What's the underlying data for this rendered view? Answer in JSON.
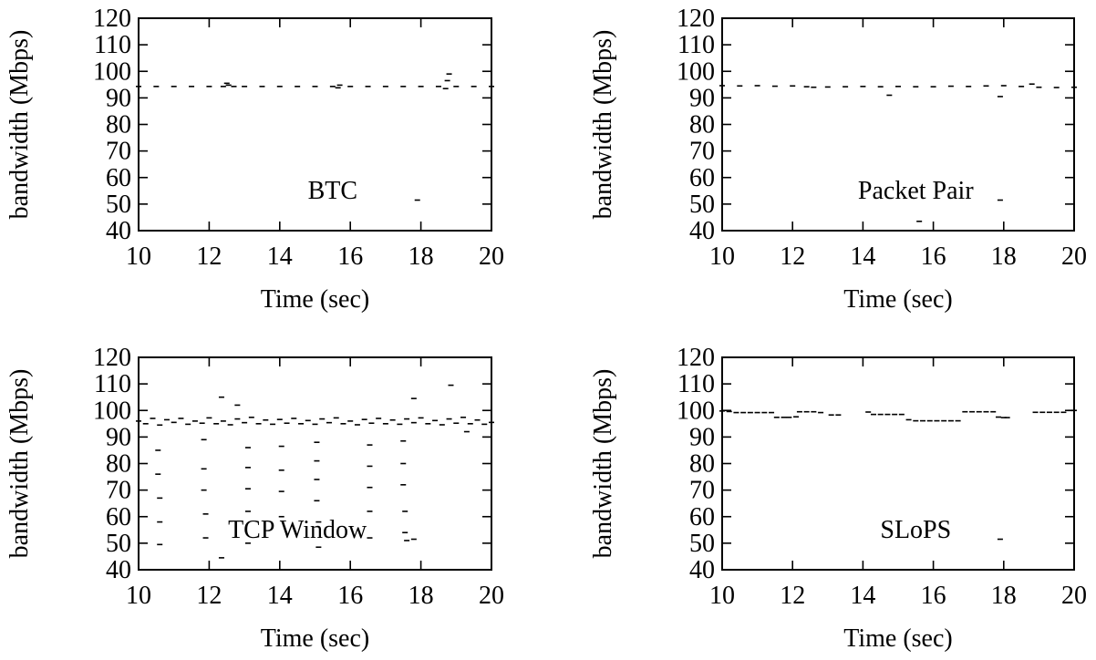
{
  "chart_data": [
    {
      "type": "scatter",
      "annotation": "BTC",
      "xlabel": "Time (sec)",
      "ylabel": "bandwidth (Mbps)",
      "xlim": [
        10,
        20
      ],
      "ylim": [
        40,
        120
      ],
      "xticks": [
        10,
        12,
        14,
        16,
        18,
        20
      ],
      "yticks": [
        40,
        50,
        60,
        70,
        80,
        90,
        100,
        110,
        120
      ],
      "grid": false,
      "series": [
        {
          "values": [
            [
              10.0,
              94.3
            ],
            [
              10.5,
              94.3
            ],
            [
              11.0,
              94.3
            ],
            [
              11.5,
              94.3
            ],
            [
              12.0,
              94.3
            ],
            [
              12.4,
              94.3
            ],
            [
              12.5,
              95.5
            ],
            [
              12.55,
              94.8
            ],
            [
              12.7,
              94.3
            ],
            [
              13.0,
              94.3
            ],
            [
              13.5,
              94.3
            ],
            [
              14.0,
              94.3
            ],
            [
              14.5,
              94.3
            ],
            [
              15.0,
              94.3
            ],
            [
              15.5,
              94.3
            ],
            [
              15.65,
              93.8
            ],
            [
              15.7,
              94.8
            ],
            [
              16.0,
              94.3
            ],
            [
              16.5,
              94.3
            ],
            [
              17.0,
              94.3
            ],
            [
              17.5,
              94.3
            ],
            [
              17.9,
              51.5
            ],
            [
              18.0,
              94.3
            ],
            [
              18.5,
              94.3
            ],
            [
              18.7,
              93.5
            ],
            [
              18.75,
              96.5
            ],
            [
              18.8,
              99.0
            ],
            [
              19.0,
              94.3
            ],
            [
              19.5,
              94.3
            ],
            [
              20.0,
              94.3
            ]
          ]
        }
      ]
    },
    {
      "type": "scatter",
      "annotation": "Packet Pair",
      "xlabel": "Time (sec)",
      "ylabel": "bandwidth (Mbps)",
      "xlim": [
        10,
        20
      ],
      "ylim": [
        40,
        120
      ],
      "xticks": [
        10,
        12,
        14,
        16,
        18,
        20
      ],
      "yticks": [
        40,
        50,
        60,
        70,
        80,
        90,
        100,
        110,
        120
      ],
      "grid": false,
      "series": [
        {
          "values": [
            [
              10.0,
              94.6
            ],
            [
              10.5,
              94.5
            ],
            [
              11.0,
              94.6
            ],
            [
              11.5,
              94.4
            ],
            [
              12.0,
              94.5
            ],
            [
              12.4,
              94.2
            ],
            [
              12.6,
              94.0
            ],
            [
              13.0,
              94.1
            ],
            [
              13.5,
              94.2
            ],
            [
              14.0,
              94.3
            ],
            [
              14.5,
              94.2
            ],
            [
              14.75,
              91.0
            ],
            [
              15.0,
              94.3
            ],
            [
              15.5,
              94.2
            ],
            [
              15.6,
              43.5
            ],
            [
              16.0,
              94.2
            ],
            [
              16.5,
              94.4
            ],
            [
              17.0,
              94.3
            ],
            [
              17.5,
              94.5
            ],
            [
              17.9,
              90.5
            ],
            [
              17.9,
              51.5
            ],
            [
              18.0,
              94.6
            ],
            [
              18.5,
              94.3
            ],
            [
              18.8,
              95.2
            ],
            [
              19.0,
              94.0
            ],
            [
              19.5,
              93.9
            ],
            [
              20.0,
              94.0
            ]
          ]
        }
      ]
    },
    {
      "type": "scatter",
      "annotation": "TCP Window",
      "xlabel": "Time (sec)",
      "ylabel": "bandwidth (Mbps)",
      "xlim": [
        10,
        20
      ],
      "ylim": [
        40,
        120
      ],
      "xticks": [
        10,
        12,
        14,
        16,
        18,
        20
      ],
      "yticks": [
        40,
        50,
        60,
        70,
        80,
        90,
        100,
        110,
        120
      ],
      "grid": false,
      "series": [
        {
          "values": [
            [
              10.0,
              96.0
            ],
            [
              10.2,
              95.0
            ],
            [
              10.4,
              97.0
            ],
            [
              10.6,
              94.5
            ],
            [
              10.8,
              96.5
            ],
            [
              11.0,
              95.5
            ],
            [
              11.2,
              97.0
            ],
            [
              11.4,
              94.8
            ],
            [
              11.6,
              96.0
            ],
            [
              11.8,
              95.2
            ],
            [
              12.0,
              97.2
            ],
            [
              12.2,
              95.0
            ],
            [
              12.4,
              96.0
            ],
            [
              12.6,
              94.6
            ],
            [
              12.8,
              96.8
            ],
            [
              13.0,
              95.4
            ],
            [
              13.2,
              97.4
            ],
            [
              13.4,
              95.0
            ],
            [
              13.6,
              96.4
            ],
            [
              13.8,
              94.8
            ],
            [
              14.0,
              96.6
            ],
            [
              14.2,
              95.2
            ],
            [
              14.4,
              97.0
            ],
            [
              14.6,
              95.0
            ],
            [
              14.8,
              96.2
            ],
            [
              15.0,
              94.8
            ],
            [
              15.2,
              96.8
            ],
            [
              15.4,
              95.4
            ],
            [
              15.6,
              97.2
            ],
            [
              15.8,
              95.0
            ],
            [
              16.0,
              96.0
            ],
            [
              16.2,
              94.6
            ],
            [
              16.4,
              96.6
            ],
            [
              16.6,
              95.2
            ],
            [
              16.8,
              97.0
            ],
            [
              17.0,
              95.0
            ],
            [
              17.2,
              96.4
            ],
            [
              17.4,
              94.8
            ],
            [
              17.6,
              96.8
            ],
            [
              17.8,
              95.4
            ],
            [
              18.0,
              97.2
            ],
            [
              18.2,
              95.0
            ],
            [
              18.4,
              96.2
            ],
            [
              18.6,
              94.6
            ],
            [
              18.8,
              96.8
            ],
            [
              19.0,
              95.2
            ],
            [
              19.2,
              97.4
            ],
            [
              19.4,
              95.0
            ],
            [
              19.6,
              96.4
            ],
            [
              19.8,
              94.8
            ],
            [
              20.0,
              95.5
            ],
            [
              10.55,
              85.0
            ],
            [
              10.55,
              76.0
            ],
            [
              10.6,
              67.0
            ],
            [
              10.6,
              58.0
            ],
            [
              10.6,
              49.5
            ],
            [
              11.85,
              89.0
            ],
            [
              11.85,
              78.0
            ],
            [
              11.85,
              70.0
            ],
            [
              11.9,
              61.0
            ],
            [
              11.9,
              52.0
            ],
            [
              12.35,
              105.0
            ],
            [
              12.35,
              44.5
            ],
            [
              12.8,
              102.0
            ],
            [
              13.1,
              86.0
            ],
            [
              13.1,
              78.5
            ],
            [
              13.1,
              70.5
            ],
            [
              13.1,
              62.0
            ],
            [
              13.1,
              50.0
            ],
            [
              14.05,
              86.5
            ],
            [
              14.05,
              77.5
            ],
            [
              14.05,
              69.5
            ],
            [
              14.05,
              60.0
            ],
            [
              15.05,
              88.0
            ],
            [
              15.05,
              81.0
            ],
            [
              15.05,
              74.0
            ],
            [
              15.05,
              66.0
            ],
            [
              15.1,
              58.0
            ],
            [
              15.1,
              48.5
            ],
            [
              16.55,
              87.0
            ],
            [
              16.55,
              79.0
            ],
            [
              16.55,
              71.0
            ],
            [
              16.55,
              62.0
            ],
            [
              16.55,
              52.0
            ],
            [
              17.5,
              88.5
            ],
            [
              17.5,
              80.0
            ],
            [
              17.5,
              72.0
            ],
            [
              17.55,
              62.0
            ],
            [
              17.55,
              54.0
            ],
            [
              17.6,
              51.0
            ],
            [
              17.8,
              104.5
            ],
            [
              17.8,
              51.5
            ],
            [
              18.85,
              109.5
            ],
            [
              19.3,
              92.0
            ]
          ]
        }
      ]
    },
    {
      "type": "scatter",
      "annotation": "SLoPS",
      "xlabel": "Time (sec)",
      "ylabel": "bandwidth (Mbps)",
      "xlim": [
        10,
        20
      ],
      "ylim": [
        40,
        120
      ],
      "xticks": [
        10,
        12,
        14,
        16,
        18,
        20
      ],
      "yticks": [
        40,
        50,
        60,
        70,
        80,
        90,
        100,
        110,
        120
      ],
      "grid": false,
      "series": [
        {
          "values": [
            [
              10.0,
              99.8
            ],
            [
              10.2,
              99.6
            ],
            [
              10.4,
              99.2
            ],
            [
              10.6,
              99.2
            ],
            [
              10.8,
              99.2
            ],
            [
              11.0,
              99.2
            ],
            [
              11.2,
              99.2
            ],
            [
              11.4,
              99.2
            ],
            [
              11.55,
              97.4
            ],
            [
              11.75,
              97.4
            ],
            [
              11.9,
              97.4
            ],
            [
              12.1,
              97.6
            ],
            [
              12.2,
              99.5
            ],
            [
              12.4,
              99.5
            ],
            [
              12.6,
              99.5
            ],
            [
              12.8,
              99.2
            ],
            [
              13.1,
              98.3
            ],
            [
              13.3,
              98.3
            ],
            [
              14.15,
              99.4
            ],
            [
              14.3,
              98.5
            ],
            [
              14.5,
              98.5
            ],
            [
              14.7,
              98.5
            ],
            [
              14.9,
              98.5
            ],
            [
              15.1,
              98.5
            ],
            [
              15.3,
              96.5
            ],
            [
              15.5,
              96.1
            ],
            [
              15.7,
              96.1
            ],
            [
              15.9,
              96.1
            ],
            [
              16.1,
              96.1
            ],
            [
              16.3,
              96.1
            ],
            [
              16.5,
              96.1
            ],
            [
              16.7,
              96.1
            ],
            [
              16.9,
              99.5
            ],
            [
              17.1,
              99.5
            ],
            [
              17.3,
              99.5
            ],
            [
              17.5,
              99.5
            ],
            [
              17.7,
              99.5
            ],
            [
              17.85,
              97.5
            ],
            [
              17.9,
              51.5
            ],
            [
              18.0,
              97.3
            ],
            [
              18.1,
              97.3
            ],
            [
              18.9,
              99.3
            ],
            [
              19.1,
              99.3
            ],
            [
              19.3,
              99.3
            ],
            [
              19.5,
              99.3
            ],
            [
              19.7,
              99.3
            ],
            [
              19.9,
              100.0
            ],
            [
              20.0,
              100.0
            ]
          ]
        }
      ]
    }
  ]
}
